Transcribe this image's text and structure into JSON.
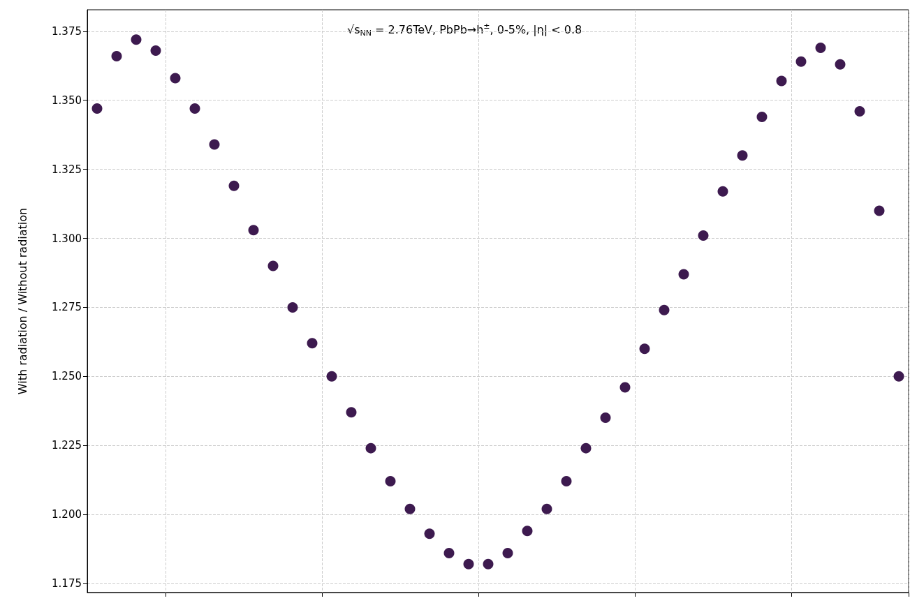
{
  "chart_data": {
    "type": "scatter",
    "ylabel": "With radiation / Without radiation",
    "legend_title": "√s$_{NN}$ = 2.76TeV, PbPb→h$^{±}$, 0-5%, |η| < 0.8",
    "categories": [
      null,
      null,
      null,
      null,
      null,
      null,
      null,
      null,
      null,
      null,
      null,
      null,
      null,
      null,
      null,
      null,
      null,
      null,
      null,
      null,
      null,
      null,
      null,
      null,
      null,
      null,
      null,
      null,
      null,
      null,
      null,
      null,
      null,
      null,
      null,
      null,
      null,
      null,
      null,
      null,
      null,
      null
    ],
    "series": [
      {
        "color": "#3d1a4f",
        "values": [
          1.347,
          1.366,
          1.372,
          1.368,
          1.358,
          1.347,
          1.334,
          1.319,
          1.303,
          1.29,
          1.275,
          1.262,
          1.25,
          1.237,
          1.224,
          1.212,
          1.202,
          1.193,
          1.186,
          1.182,
          1.182,
          1.186,
          1.194,
          1.202,
          1.212,
          1.224,
          1.235,
          1.246,
          1.26,
          1.274,
          1.287,
          1.301,
          1.317,
          1.33,
          1.344,
          1.357,
          1.364,
          1.369,
          1.363,
          1.346,
          1.31,
          1.25
        ]
      }
    ],
    "ylim": [
      1.1717,
      1.3828
    ],
    "yticks": [
      {
        "value": 1.175,
        "label": "1.175"
      },
      {
        "value": 1.2,
        "label": "1.200"
      },
      {
        "value": 1.225,
        "label": "1.225"
      },
      {
        "value": 1.25,
        "label": "1.250"
      },
      {
        "value": 1.275,
        "label": "1.275"
      },
      {
        "value": 1.3,
        "label": "1.300"
      },
      {
        "value": 1.325,
        "label": "1.325"
      },
      {
        "value": 1.35,
        "label": "1.350"
      },
      {
        "value": 1.375,
        "label": "1.375"
      }
    ],
    "tick_labels": "y",
    "grid": true,
    "marker": "circle"
  }
}
